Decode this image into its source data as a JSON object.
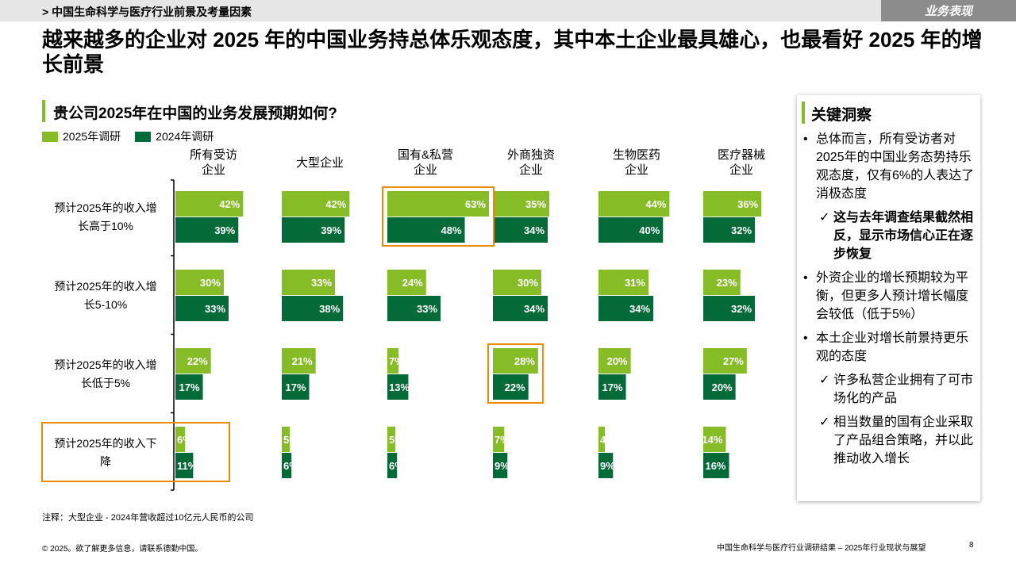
{
  "header": {
    "breadcrumb": "> 中国生命科学与医疗行业前景及考量因素",
    "section_tag": "业务表现"
  },
  "headline": "越来越多的企业对 2025 年的中国业务持总体乐观态度，其中本土企业最具雄心，也最看好 2025 年的增长前景",
  "colors": {
    "series_2025": "#86bc25",
    "series_2024": "#046a38",
    "highlight_box": "#ed8b00"
  },
  "chart_data": {
    "type": "bar",
    "orientation": "horizontal",
    "title": "贵公司2025年在中国的业务发展预期如何?",
    "legend_position": "top-left",
    "grid": false,
    "value_unit": "%",
    "groups": [
      {
        "line1": "所有受访",
        "line2": "企业"
      },
      {
        "line1": "大型企业",
        "line2": ""
      },
      {
        "line1": "国有&私营",
        "line2": "企业"
      },
      {
        "line1": "外商独资",
        "line2": "企业"
      },
      {
        "line1": "生物医药",
        "line2": "企业"
      },
      {
        "line1": "医疗器械",
        "line2": "企业"
      }
    ],
    "categories": [
      {
        "line1": "预计2025年的收入增",
        "line2": "长高于10%"
      },
      {
        "line1": "预计2025年的收入增",
        "line2": "长5-10%"
      },
      {
        "line1": "预计2025年的收入增",
        "line2": "长低于5%"
      },
      {
        "line1": "预计2025年的收入下",
        "line2": "降"
      }
    ],
    "series": [
      {
        "name": "2025年调研",
        "values": [
          [
            42,
            42,
            63,
            35,
            44,
            36
          ],
          [
            30,
            33,
            24,
            30,
            31,
            23
          ],
          [
            22,
            21,
            7,
            28,
            20,
            27
          ],
          [
            6,
            5,
            5,
            7,
            4,
            14
          ]
        ]
      },
      {
        "name": "2024年调研",
        "values": [
          [
            39,
            39,
            48,
            34,
            40,
            32
          ],
          [
            33,
            38,
            33,
            34,
            34,
            32
          ],
          [
            17,
            17,
            13,
            22,
            17,
            20
          ],
          [
            11,
            6,
            6,
            9,
            9,
            16
          ]
        ]
      }
    ],
    "highlights": [
      {
        "category": 0,
        "group": 2
      },
      {
        "category": 2,
        "group": 3
      },
      {
        "category": 3,
        "label": true
      }
    ]
  },
  "insights": {
    "title": "关键洞察",
    "items": [
      {
        "text": "总体而言，所有受访者对2025年的中国业务态势持乐观态度，仅有6%的人表达了消极态度",
        "subs": [
          {
            "text": "这与去年调查结果截然相反，显示市场信心正在逐步恢复",
            "bold": true
          }
        ]
      },
      {
        "text": "外资企业的增长预期较为平衡，但更多人预计增长幅度会较低（低于5%）",
        "subs": []
      },
      {
        "text": "本土企业对增长前景持更乐观的态度",
        "subs": [
          {
            "text": "许多私营企业拥有了可市场化的产品",
            "bold": false
          },
          {
            "text": "相当数量的国有企业采取了产品组合策略，并以此推动收入增长",
            "bold": false
          }
        ]
      }
    ]
  },
  "footer": {
    "note": "注释：大型企业 - 2024年营收超过10亿元人民币的公司",
    "copyright": "© 2025。欲了解更多信息，请联系德勤中国。",
    "source": "中国生命科学与医疗行业调研结果 – 2025年行业现状与展望",
    "page": "8"
  }
}
